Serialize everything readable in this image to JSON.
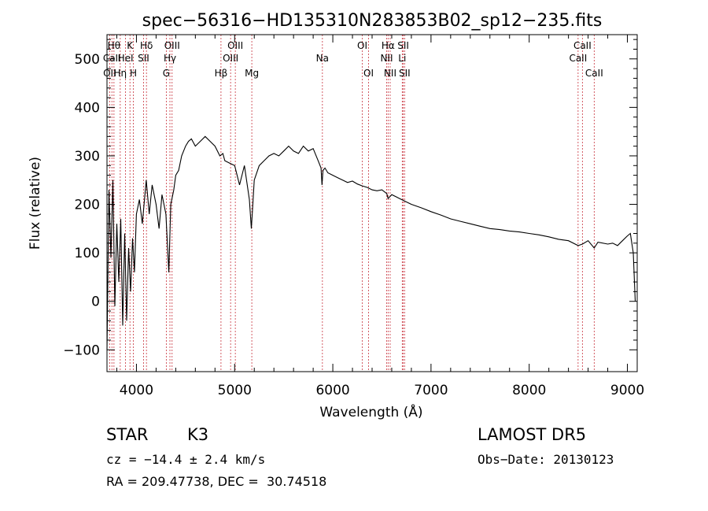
{
  "chart_data": {
    "type": "line",
    "title": "spec−56316−HD135310N283853B02_sp12−235.fits",
    "xlabel": "Wavelength (Å)",
    "ylabel": "Flux (relative)",
    "xlim": [
      3700,
      9100
    ],
    "ylim": [
      -145,
      550
    ],
    "x_ticks": [
      4000,
      5000,
      6000,
      7000,
      8000,
      9000
    ],
    "y_ticks": [
      -100,
      0,
      100,
      200,
      300,
      400,
      500
    ],
    "grid": false,
    "series": [
      {
        "color": "#000000",
        "x": [
          3700,
          3720,
          3740,
          3760,
          3780,
          3800,
          3820,
          3840,
          3860,
          3880,
          3900,
          3920,
          3940,
          3960,
          3980,
          4000,
          4030,
          4060,
          4100,
          4130,
          4160,
          4200,
          4230,
          4260,
          4300,
          4330,
          4350,
          4380,
          4400,
          4430,
          4460,
          4500,
          4530,
          4560,
          4600,
          4650,
          4700,
          4750,
          4800,
          4850,
          4880,
          4900,
          4950,
          5000,
          5050,
          5100,
          5150,
          5170,
          5185,
          5200,
          5250,
          5300,
          5350,
          5400,
          5450,
          5500,
          5550,
          5600,
          5650,
          5700,
          5750,
          5800,
          5850,
          5880,
          5890,
          5900,
          5920,
          5950,
          6000,
          6050,
          6100,
          6150,
          6200,
          6250,
          6300,
          6350,
          6400,
          6450,
          6500,
          6550,
          6563,
          6600,
          6650,
          6700,
          6750,
          6800,
          6900,
          7000,
          7100,
          7200,
          7300,
          7400,
          7500,
          7600,
          7700,
          7800,
          7900,
          8000,
          8100,
          8200,
          8300,
          8400,
          8498,
          8542,
          8600,
          8662,
          8700,
          8800,
          8850,
          8900,
          8950,
          9000,
          9030,
          9060,
          9080
        ],
        "y": [
          -100,
          230,
          90,
          250,
          -10,
          160,
          40,
          170,
          -50,
          140,
          -40,
          110,
          20,
          130,
          60,
          180,
          210,
          160,
          250,
          180,
          240,
          200,
          150,
          220,
          180,
          60,
          200,
          230,
          260,
          270,
          300,
          320,
          330,
          335,
          320,
          330,
          340,
          330,
          320,
          300,
          305,
          290,
          285,
          280,
          240,
          280,
          210,
          150,
          200,
          250,
          280,
          290,
          300,
          305,
          300,
          310,
          320,
          310,
          305,
          320,
          310,
          315,
          290,
          275,
          240,
          270,
          275,
          265,
          260,
          255,
          250,
          245,
          248,
          242,
          238,
          235,
          230,
          228,
          230,
          222,
          212,
          220,
          215,
          210,
          205,
          200,
          193,
          185,
          178,
          170,
          165,
          160,
          155,
          150,
          148,
          145,
          143,
          140,
          137,
          133,
          128,
          125,
          115,
          118,
          125,
          110,
          122,
          118,
          120,
          115,
          125,
          135,
          140,
          100,
          0
        ]
      }
    ],
    "lines": [
      {
        "wl": 3727,
        "label": "OII",
        "row": 3
      },
      {
        "wl": 3750,
        "label": "CaII",
        "row": 2
      },
      {
        "wl": 3771,
        "label": "Hθ",
        "row": 1
      },
      {
        "wl": 3835,
        "label": "Hη",
        "row": 3
      },
      {
        "wl": 3889,
        "label": "HeI",
        "row": 2
      },
      {
        "wl": 3934,
        "label": "K",
        "row": 1
      },
      {
        "wl": 3969,
        "label": "H",
        "row": 3
      },
      {
        "wl": 4072,
        "label": "SII",
        "row": 2
      },
      {
        "wl": 4102,
        "label": "Hδ",
        "row": 1
      },
      {
        "wl": 4304,
        "label": "G",
        "row": 3
      },
      {
        "wl": 4341,
        "label": "Hγ",
        "row": 2
      },
      {
        "wl": 4363,
        "label": "OIII",
        "row": 1
      },
      {
        "wl": 4861,
        "label": "Hβ",
        "row": 3
      },
      {
        "wl": 4959,
        "label": "OIII",
        "row": 2
      },
      {
        "wl": 5007,
        "label": "OIII",
        "row": 1
      },
      {
        "wl": 5175,
        "label": "Mg",
        "row": 3
      },
      {
        "wl": 5894,
        "label": "Na",
        "row": 2
      },
      {
        "wl": 6300,
        "label": "OI",
        "row": 1
      },
      {
        "wl": 6364,
        "label": "OI",
        "row": 3
      },
      {
        "wl": 6548,
        "label": "NII",
        "row": 2
      },
      {
        "wl": 6563,
        "label": "Hα",
        "row": 1
      },
      {
        "wl": 6584,
        "label": "NII",
        "row": 3
      },
      {
        "wl": 6707,
        "label": "Li",
        "row": 2
      },
      {
        "wl": 6717,
        "label": "SII",
        "row": 1
      },
      {
        "wl": 6731,
        "label": "SII",
        "row": 3
      },
      {
        "wl": 8498,
        "label": "CaII",
        "row": 2
      },
      {
        "wl": 8542,
        "label": "CaII",
        "row": 1
      },
      {
        "wl": 8662,
        "label": "CaII",
        "row": 3
      }
    ]
  },
  "info": {
    "object_class": "STAR",
    "subclass": "K3",
    "survey": "LAMOST DR5",
    "redshift": "cz = −14.4 ± 2.4 km/s",
    "obs_date": "Obs−Date: 20130123",
    "coords": "RA = 209.47738, DEC =  30.74518"
  }
}
